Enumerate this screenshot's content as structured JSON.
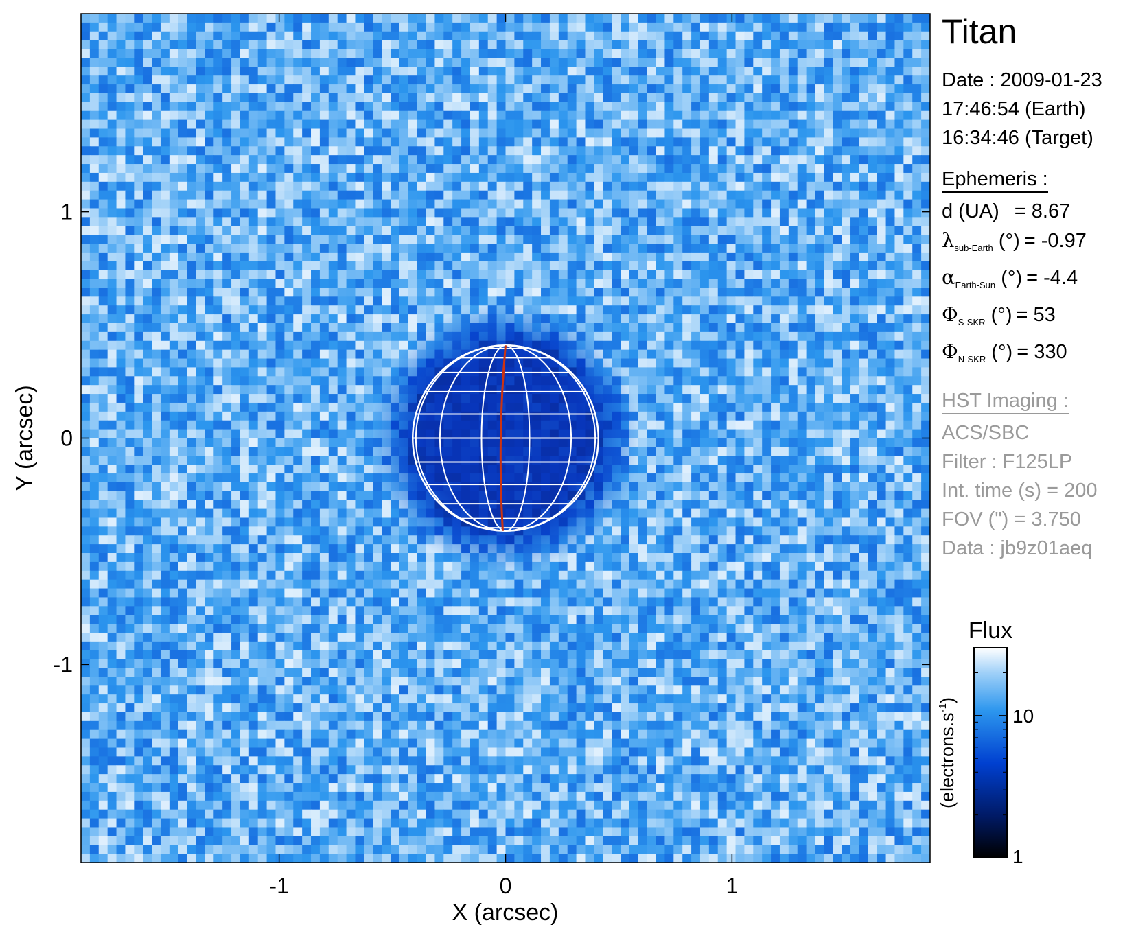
{
  "chart_data": {
    "type": "heatmap",
    "title": "",
    "xlabel": "X (arcsec)",
    "ylabel": "Y (arcsec)",
    "xlim": [
      -1.875,
      1.875
    ],
    "ylim": [
      -1.875,
      1.875
    ],
    "xticks": [
      -1,
      0,
      1
    ],
    "yticks": [
      -1,
      0,
      1
    ],
    "tick_labels": {
      "x": [
        "-1",
        "0",
        "1"
      ],
      "y": [
        "-1",
        "0",
        "1"
      ]
    },
    "colorscale": {
      "type": "log",
      "colors": [
        "#000000",
        "#001a66",
        "#0040d0",
        "#2c96ee",
        "#9fd0f8",
        "#ffffff"
      ]
    },
    "colorbar": {
      "title": "Flux",
      "label": "(electrons.s-1)",
      "ticks": [
        1,
        10
      ],
      "tick_labels": [
        "1",
        "10"
      ],
      "range": [
        1,
        30
      ]
    },
    "background_flux": 14,
    "disk": {
      "center": [
        0,
        0
      ],
      "radius_arcsec": 0.41,
      "flux": 4
    },
    "grid_overlay": {
      "color": "#ffffff",
      "central_meridian_color": "#cc3311"
    }
  },
  "panel": {
    "target": "Titan",
    "date_line": "Date : 2009-01-23",
    "earth_time": "17:46:54 (Earth)",
    "target_time": "16:34:46 (Target)",
    "ephemeris_heading": "Ephemeris :",
    "ephemeris": [
      {
        "sym": "",
        "sub": "",
        "name": "d (UA)",
        "eq": "= 8.67"
      },
      {
        "sym": "λ",
        "sub": "sub-Earth",
        "name": " (°)",
        "eq": "= -0.97"
      },
      {
        "sym": "α",
        "sub": "Earth-Sun",
        "name": " (°)",
        "eq": "= -4.4"
      },
      {
        "sym": "Φ",
        "sub": "S-SKR",
        "name": " (°)",
        "eq": "= 53"
      },
      {
        "sym": "Φ",
        "sub": "N-SKR",
        "name": " (°)",
        "eq": "= 330"
      }
    ],
    "hst_heading": "HST Imaging :",
    "hst": [
      "ACS/SBC",
      "Filter : F125LP",
      "Int. time (s) = 200",
      "FOV (\") = 3.750",
      "Data : jb9z01aeq"
    ]
  }
}
